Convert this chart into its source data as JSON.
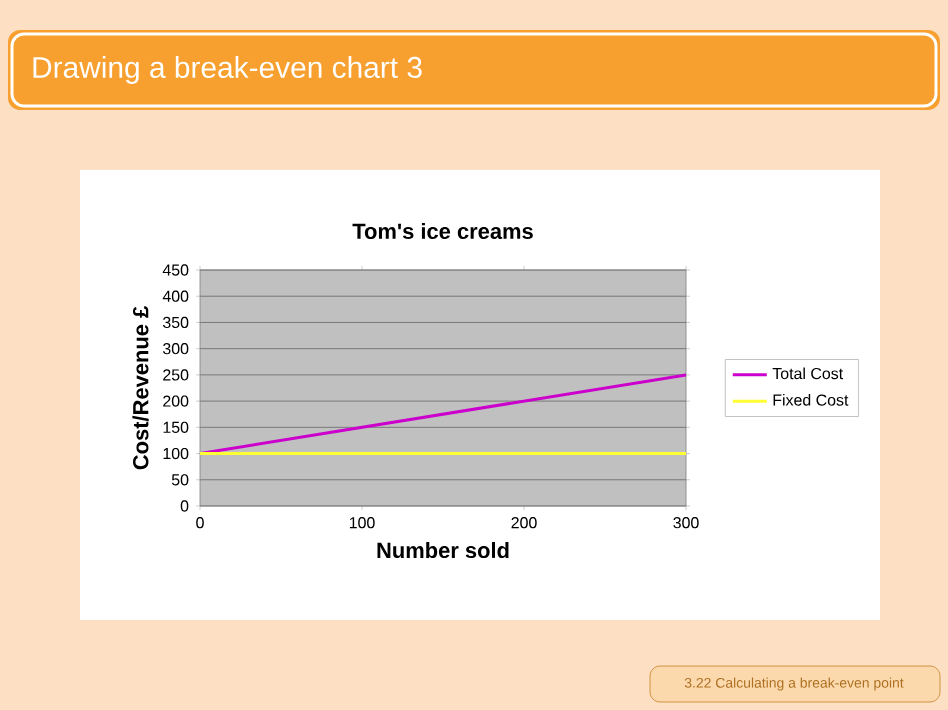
{
  "chart_data": {
    "type": "line",
    "title": "Tom's ice creams",
    "xlabel": "Number sold",
    "ylabel": "Cost/Revenue £",
    "x": [
      0,
      300
    ],
    "series": [
      {
        "name": "Total Cost",
        "color": "#cc00cc",
        "values": [
          100,
          250
        ]
      },
      {
        "name": "Fixed Cost",
        "color": "#ffff33",
        "values": [
          100,
          100
        ]
      }
    ],
    "xlim": [
      0,
      300
    ],
    "xticks": [
      0,
      100,
      200,
      300
    ],
    "ylim": [
      0,
      450
    ],
    "yticks": [
      0,
      50,
      100,
      150,
      200,
      250,
      300,
      350,
      400,
      450
    ],
    "grid": "y",
    "legend": "right",
    "marker": "none",
    "line_style": "solid",
    "annotations": [
      "Drawing a break-even chart 3",
      "3.22 Calculating a break-even point"
    ]
  }
}
